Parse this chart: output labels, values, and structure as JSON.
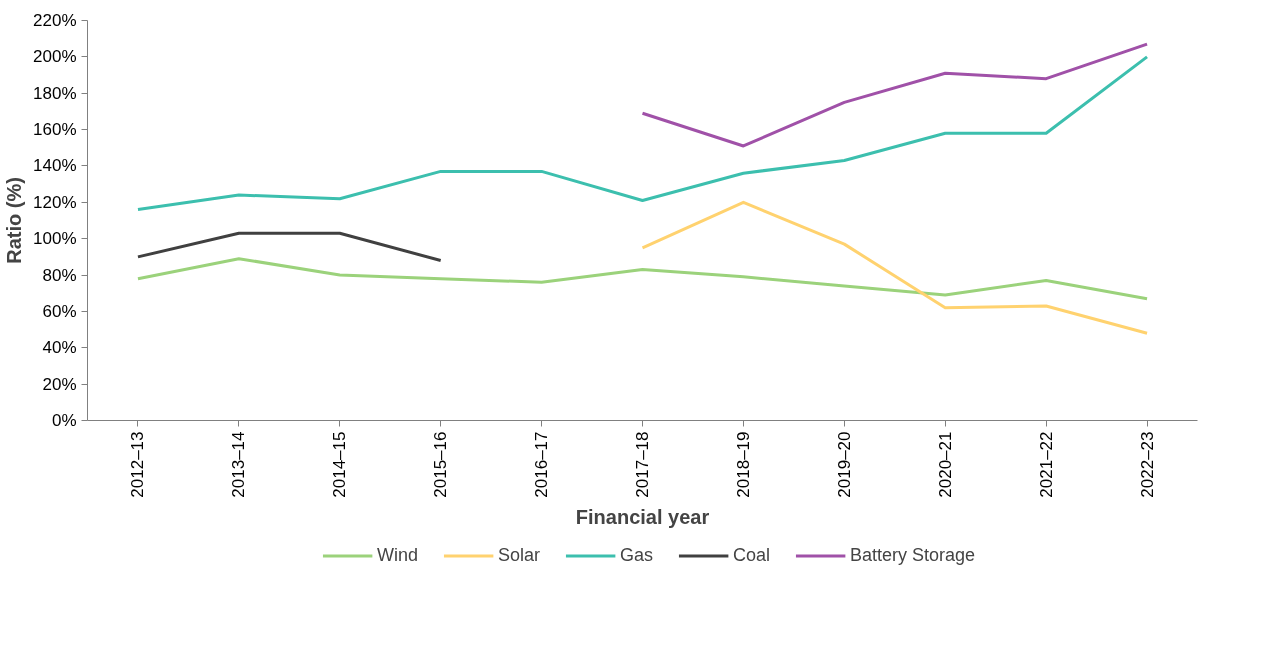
{
  "chart_data": {
    "type": "line",
    "xlabel": "Financial year",
    "ylabel": "Ratio (%)",
    "categories": [
      "2012–13",
      "2013–14",
      "2014–15",
      "2015–16",
      "2016–17",
      "2017–18",
      "2018–19",
      "2019–20",
      "2020–21",
      "2021–22",
      "2022–23"
    ],
    "series": [
      {
        "name": "Wind",
        "color": "#9bd27b",
        "values": [
          78,
          89,
          80,
          78,
          76,
          83,
          79,
          74,
          69,
          77,
          67
        ]
      },
      {
        "name": "Solar",
        "color": "#ffd26f",
        "values": [
          null,
          null,
          null,
          null,
          null,
          95,
          120,
          97,
          62,
          63,
          48
        ]
      },
      {
        "name": "Gas",
        "color": "#3cbfae",
        "values": [
          116,
          124,
          122,
          137,
          137,
          121,
          136,
          143,
          158,
          158,
          200
        ]
      },
      {
        "name": "Coal",
        "color": "#404040",
        "values": [
          90,
          103,
          103,
          88,
          null,
          null,
          null,
          null,
          null,
          null,
          null
        ]
      },
      {
        "name": "Battery Storage",
        "color": "#a051a8",
        "values": [
          null,
          null,
          null,
          null,
          null,
          169,
          151,
          175,
          191,
          188,
          207
        ]
      }
    ],
    "ylim": [
      0,
      220
    ],
    "yticks": [
      {
        "value": 0,
        "label": "0%"
      },
      {
        "value": 20,
        "label": "20%"
      },
      {
        "value": 40,
        "label": "40%"
      },
      {
        "value": 60,
        "label": "60%"
      },
      {
        "value": 80,
        "label": "80%"
      },
      {
        "value": 100,
        "label": "100%"
      },
      {
        "value": 120,
        "label": "120%"
      },
      {
        "value": 140,
        "label": "140%"
      },
      {
        "value": 160,
        "label": "160%"
      },
      {
        "value": 180,
        "label": "180%"
      },
      {
        "value": 200,
        "label": "200%"
      },
      {
        "value": 220,
        "label": "220%"
      }
    ],
    "grid": false,
    "legend": "bottom",
    "marker": "none",
    "line_style": "solid"
  }
}
